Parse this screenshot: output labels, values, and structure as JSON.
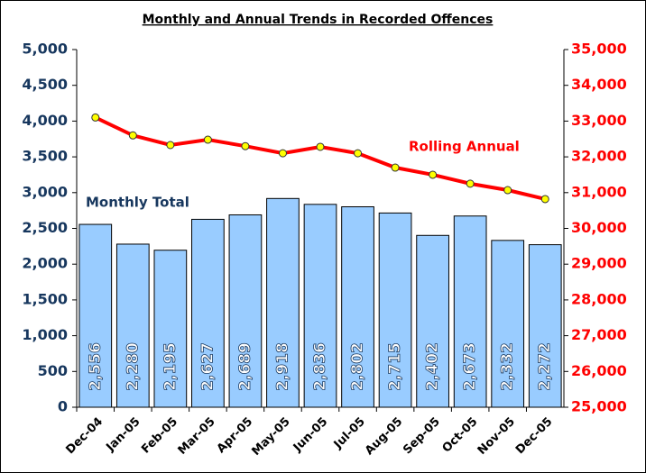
{
  "chart_data": {
    "type": "bar_line",
    "title": "Monthly and Annual Trends in Recorded Offences",
    "categories": [
      "Dec-04",
      "Jan-05",
      "Feb-05",
      "Mar-05",
      "Apr-05",
      "May-05",
      "Jun-05",
      "Jul-05",
      "Aug-05",
      "Sep-05",
      "Oct-05",
      "Nov-05",
      "Dec-05"
    ],
    "series": [
      {
        "name": "Monthly Total",
        "type": "bar",
        "color": "#99ccff",
        "values": [
          2556,
          2280,
          2195,
          2627,
          2689,
          2918,
          2836,
          2802,
          2715,
          2402,
          2673,
          2332,
          2272
        ],
        "value_labels": [
          "2,556",
          "2,280",
          "2,195",
          "2,627",
          "2,689",
          "2,918",
          "2,836",
          "2,802",
          "2,715",
          "2,402",
          "2,673",
          "2,332",
          "2,272"
        ]
      },
      {
        "name": "Rolling Annual",
        "type": "line",
        "axis": "y2",
        "color": "#ff0000",
        "values": [
          33100,
          32600,
          32330,
          32480,
          32300,
          32100,
          32280,
          32100,
          31700,
          31500,
          31250,
          31070,
          30820
        ]
      }
    ],
    "ylim": [
      0,
      5000
    ],
    "yticks": [
      0,
      500,
      {
        "value": 1000,
        "label": "1,000"
      },
      {
        "value": 1500,
        "label": "1,500"
      },
      {
        "value": 2000,
        "label": "2,000"
      },
      {
        "value": 2500,
        "label": "2,500"
      },
      {
        "value": 3000,
        "label": "3,000"
      },
      {
        "value": 3500,
        "label": "3,500"
      },
      {
        "value": 4000,
        "label": "4,000"
      },
      {
        "value": 4500,
        "label": "4,500"
      },
      {
        "value": 5000,
        "label": "5,000"
      }
    ],
    "y2lim": [
      25000,
      35000
    ],
    "y2ticks": [
      {
        "value": 25000,
        "label": "25,000"
      },
      {
        "value": 26000,
        "label": "26,000"
      },
      {
        "value": 27000,
        "label": "27,000"
      },
      {
        "value": 28000,
        "label": "28,000"
      },
      {
        "value": 29000,
        "label": "29,000"
      },
      {
        "value": 30000,
        "label": "30,000"
      },
      {
        "value": 31000,
        "label": "31,000"
      },
      {
        "value": 32000,
        "label": "32,000"
      },
      {
        "value": 33000,
        "label": "33,000"
      },
      {
        "value": 34000,
        "label": "34,000"
      },
      {
        "value": 35000,
        "label": "35,000"
      }
    ],
    "grid": false
  }
}
